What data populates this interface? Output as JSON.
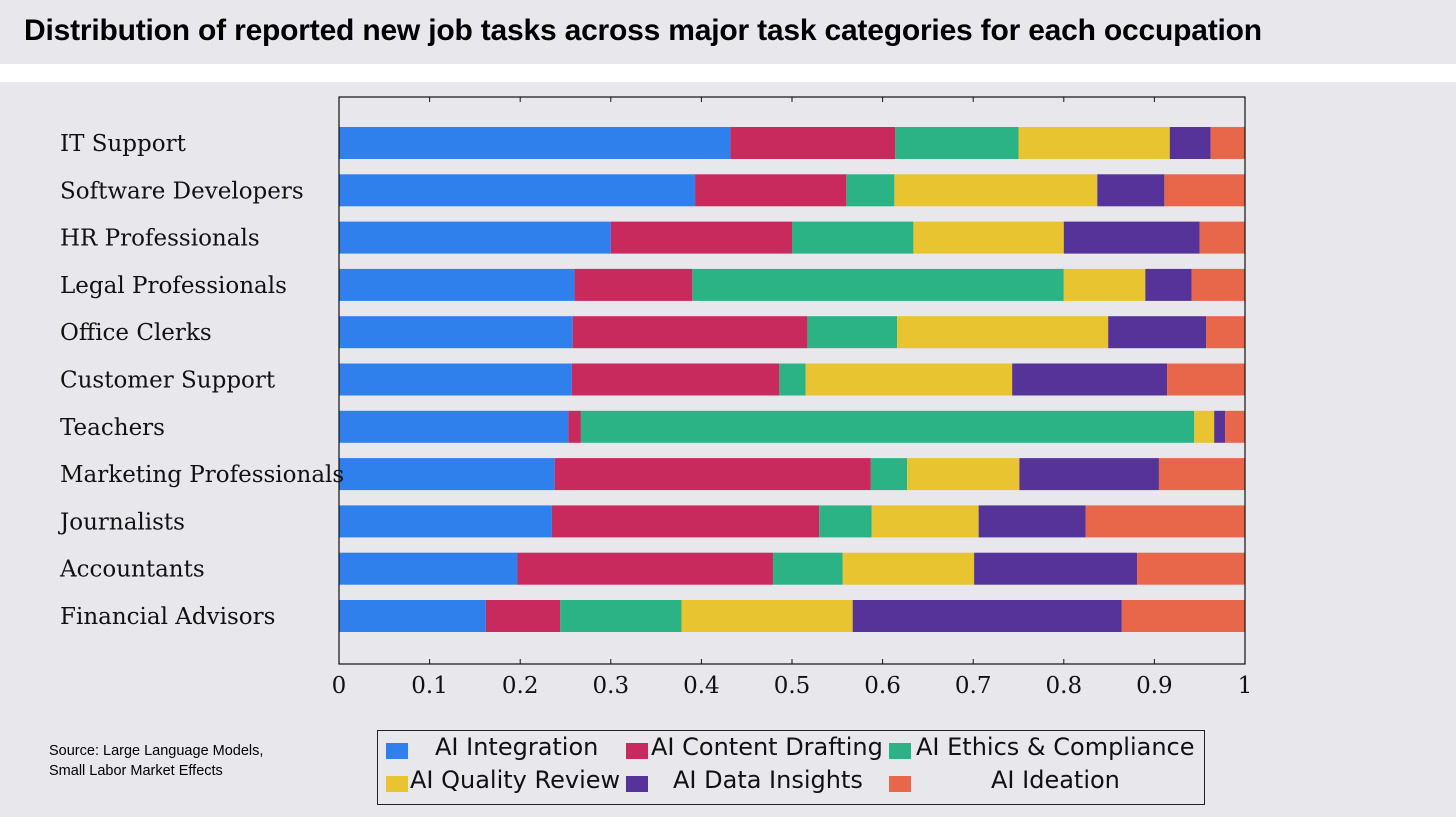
{
  "title": "Distribution of reported new job tasks across major task categories for each occupation",
  "source": "Source:  Large Language Models, Small Labor Market Effects",
  "chart_data": {
    "type": "bar",
    "orientation": "horizontal",
    "stacked": true,
    "title": "",
    "xlabel": "",
    "ylabel": "",
    "xlim": [
      0,
      1
    ],
    "xticks": [
      "0",
      "0.1",
      "0.2",
      "0.3",
      "0.4",
      "0.5",
      "0.6",
      "0.7",
      "0.8",
      "0.9",
      "1"
    ],
    "grid": false,
    "legend_position": "bottom",
    "categories": [
      "IT Support",
      "Software Developers",
      "HR Professionals",
      "Legal Professionals",
      "Office Clerks",
      "Customer Support",
      "Teachers",
      "Marketing Professionals",
      "Journalists",
      "Accountants",
      "Financial Advisors"
    ],
    "series": [
      {
        "name": "AI Integration",
        "color": "#2f80ed",
        "values": [
          0.432,
          0.393,
          0.3,
          0.26,
          0.258,
          0.257,
          0.253,
          0.238,
          0.235,
          0.197,
          0.162
        ]
      },
      {
        "name": "AI Content Drafting",
        "color": "#c92a5e",
        "values": [
          0.182,
          0.167,
          0.2,
          0.13,
          0.259,
          0.229,
          0.014,
          0.349,
          0.295,
          0.282,
          0.082
        ]
      },
      {
        "name": "AI Ethics & Compliance",
        "color": "#2bb385",
        "values": [
          0.136,
          0.053,
          0.134,
          0.41,
          0.099,
          0.029,
          0.677,
          0.04,
          0.058,
          0.077,
          0.134
        ]
      },
      {
        "name": "AI Quality Review",
        "color": "#e8c430",
        "values": [
          0.167,
          0.224,
          0.166,
          0.09,
          0.233,
          0.228,
          0.022,
          0.124,
          0.118,
          0.145,
          0.189
        ]
      },
      {
        "name": "AI Data Insights",
        "color": "#553398",
        "values": [
          0.045,
          0.074,
          0.15,
          0.051,
          0.108,
          0.171,
          0.012,
          0.154,
          0.118,
          0.18,
          0.297
        ]
      },
      {
        "name": "AI Ideation",
        "color": "#e8674a",
        "values": [
          0.038,
          0.089,
          0.05,
          0.059,
          0.043,
          0.086,
          0.022,
          0.095,
          0.176,
          0.119,
          0.136
        ]
      }
    ]
  }
}
